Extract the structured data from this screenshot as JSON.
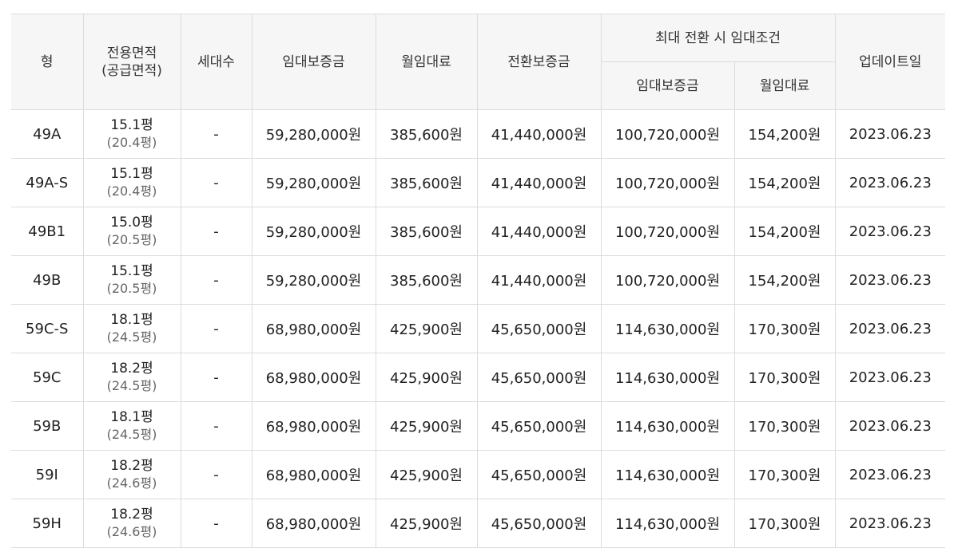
{
  "headers": {
    "type": "형",
    "area": "전용면적",
    "supply_area": "(공급면적)",
    "households": "세대수",
    "deposit": "임대보증금",
    "monthly_rent": "월임대료",
    "conversion_deposit": "전환보증금",
    "max_conversion": "최대 전환 시 임대조건",
    "max_deposit": "임대보증금",
    "max_monthly_rent": "월임대료",
    "updated": "업데이트일"
  },
  "rows": [
    {
      "type": "49A",
      "area": "15.1평",
      "supply_area": "(20.4평)",
      "households": "-",
      "deposit": "59,280,000원",
      "monthly_rent": "385,600원",
      "conversion_deposit": "41,440,000원",
      "max_deposit": "100,720,000원",
      "max_monthly_rent": "154,200원",
      "updated": "2023.06.23"
    },
    {
      "type": "49A-S",
      "area": "15.1평",
      "supply_area": "(20.4평)",
      "households": "-",
      "deposit": "59,280,000원",
      "monthly_rent": "385,600원",
      "conversion_deposit": "41,440,000원",
      "max_deposit": "100,720,000원",
      "max_monthly_rent": "154,200원",
      "updated": "2023.06.23"
    },
    {
      "type": "49B1",
      "area": "15.0평",
      "supply_area": "(20.5평)",
      "households": "-",
      "deposit": "59,280,000원",
      "monthly_rent": "385,600원",
      "conversion_deposit": "41,440,000원",
      "max_deposit": "100,720,000원",
      "max_monthly_rent": "154,200원",
      "updated": "2023.06.23"
    },
    {
      "type": "49B",
      "area": "15.1평",
      "supply_area": "(20.5평)",
      "households": "-",
      "deposit": "59,280,000원",
      "monthly_rent": "385,600원",
      "conversion_deposit": "41,440,000원",
      "max_deposit": "100,720,000원",
      "max_monthly_rent": "154,200원",
      "updated": "2023.06.23"
    },
    {
      "type": "59C-S",
      "area": "18.1평",
      "supply_area": "(24.5평)",
      "households": "-",
      "deposit": "68,980,000원",
      "monthly_rent": "425,900원",
      "conversion_deposit": "45,650,000원",
      "max_deposit": "114,630,000원",
      "max_monthly_rent": "170,300원",
      "updated": "2023.06.23"
    },
    {
      "type": "59C",
      "area": "18.2평",
      "supply_area": "(24.5평)",
      "households": "-",
      "deposit": "68,980,000원",
      "monthly_rent": "425,900원",
      "conversion_deposit": "45,650,000원",
      "max_deposit": "114,630,000원",
      "max_monthly_rent": "170,300원",
      "updated": "2023.06.23"
    },
    {
      "type": "59B",
      "area": "18.1평",
      "supply_area": "(24.5평)",
      "households": "-",
      "deposit": "68,980,000원",
      "monthly_rent": "425,900원",
      "conversion_deposit": "45,650,000원",
      "max_deposit": "114,630,000원",
      "max_monthly_rent": "170,300원",
      "updated": "2023.06.23"
    },
    {
      "type": "59I",
      "area": "18.2평",
      "supply_area": "(24.6평)",
      "households": "-",
      "deposit": "68,980,000원",
      "monthly_rent": "425,900원",
      "conversion_deposit": "45,650,000원",
      "max_deposit": "114,630,000원",
      "max_monthly_rent": "170,300원",
      "updated": "2023.06.23"
    },
    {
      "type": "59H",
      "area": "18.2평",
      "supply_area": "(24.6평)",
      "households": "-",
      "deposit": "68,980,000원",
      "monthly_rent": "425,900원",
      "conversion_deposit": "45,650,000원",
      "max_deposit": "114,630,000원",
      "max_monthly_rent": "170,300원",
      "updated": "2023.06.23"
    }
  ]
}
